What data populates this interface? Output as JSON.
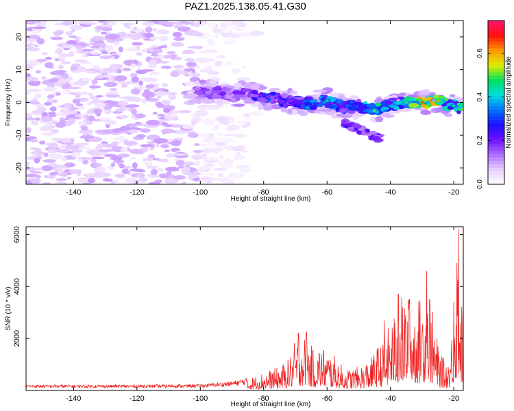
{
  "title": "PAZ1.2025.138.05.41.G30",
  "chart_data": [
    {
      "type": "heatmap",
      "title": "PAZ1.2025.138.05.41.G30",
      "xlabel": "Height of straight line (km)",
      "ylabel": "Frequency (Hz)",
      "xlim": [
        -155,
        -17
      ],
      "ylim": [
        -25,
        25
      ],
      "xticks": [
        -140,
        -120,
        -100,
        -80,
        -60,
        -40,
        -20
      ],
      "yticks": [
        -20,
        -10,
        0,
        10,
        20
      ],
      "colorbar": {
        "label": "Normalized spectral amplitude",
        "range": [
          0,
          0.75
        ],
        "ticks": [
          0,
          0.2,
          0.4,
          0.6
        ],
        "colors": [
          "#ffffff",
          "#e8d0ff",
          "#b070ff",
          "#7010ff",
          "#1f10ff",
          "#0070ff",
          "#00dddd",
          "#00e060",
          "#ddee00",
          "#ff9900",
          "#ff1010",
          "#ff1470"
        ]
      },
      "noise_region": {
        "x": [
          -155,
          -80
        ],
        "y": [
          -25,
          25
        ]
      },
      "ridge": {
        "x": [
          -101,
          -95,
          -90,
          -85,
          -80,
          -75,
          -70,
          -65,
          -60,
          -55,
          -50,
          -45,
          -40,
          -35,
          -30,
          -25,
          -20,
          -17
        ],
        "y": [
          3.5,
          3.0,
          2.5,
          2.5,
          1.5,
          1.0,
          0.0,
          -0.5,
          0.5,
          -1.5,
          -1.0,
          -2.5,
          -0.5,
          0.0,
          0.0,
          0.5,
          -1.0,
          -2.0
        ],
        "amplitude": [
          0.22,
          0.2,
          0.2,
          0.22,
          0.35,
          0.28,
          0.3,
          0.38,
          0.45,
          0.35,
          0.35,
          0.5,
          0.38,
          0.5,
          0.65,
          0.6,
          0.45,
          0.55
        ]
      },
      "secondary_branch": {
        "x": [
          -55,
          -52,
          -49,
          -46,
          -43
        ],
        "y": [
          -6,
          -7.5,
          -8.5,
          -10,
          -11
        ]
      }
    },
    {
      "type": "line",
      "xlabel": "Height of straight line (km)",
      "ylabel": "SNR (10 * v/v)",
      "xlim": [
        -155,
        -17
      ],
      "ylim": [
        0,
        6300
      ],
      "xticks": [
        -140,
        -120,
        -100,
        -80,
        -60,
        -40,
        -20
      ],
      "yticks": [
        2000,
        4000,
        6000
      ],
      "color": "#ee2222",
      "series": [
        {
          "x": [
            -155,
            -140,
            -120,
            -100,
            -90,
            -85,
            -80,
            -75,
            -72,
            -70,
            -68,
            -66,
            -64,
            -62,
            -60,
            -58,
            -56,
            -54,
            -52,
            -50,
            -48,
            -46,
            -44,
            -42,
            -40,
            -38,
            -36,
            -34,
            -32,
            -30,
            -29,
            -28,
            -27,
            -26,
            -24,
            -22,
            -21,
            -20,
            -19,
            -18,
            -17
          ],
          "envelope": [
            200,
            200,
            200,
            220,
            320,
            450,
            700,
            900,
            1200,
            1900,
            2250,
            1900,
            1500,
            1750,
            1500,
            1350,
            1050,
            800,
            850,
            900,
            1050,
            1250,
            1700,
            1800,
            2700,
            3000,
            3700,
            3500,
            3300,
            3600,
            4100,
            4600,
            3300,
            2400,
            1300,
            1100,
            1600,
            3400,
            6200,
            4500,
            2200
          ],
          "spikes": [
            {
              "x": -69,
              "y": 2200
            },
            {
              "x": -66.5,
              "y": 2250
            },
            {
              "x": -42,
              "y": 2700
            },
            {
              "x": -37.5,
              "y": 3700
            },
            {
              "x": -34,
              "y": 3500
            },
            {
              "x": -28.5,
              "y": 4600
            },
            {
              "x": -20,
              "y": 3400
            },
            {
              "x": -18.5,
              "y": 6200
            }
          ]
        }
      ]
    }
  ]
}
